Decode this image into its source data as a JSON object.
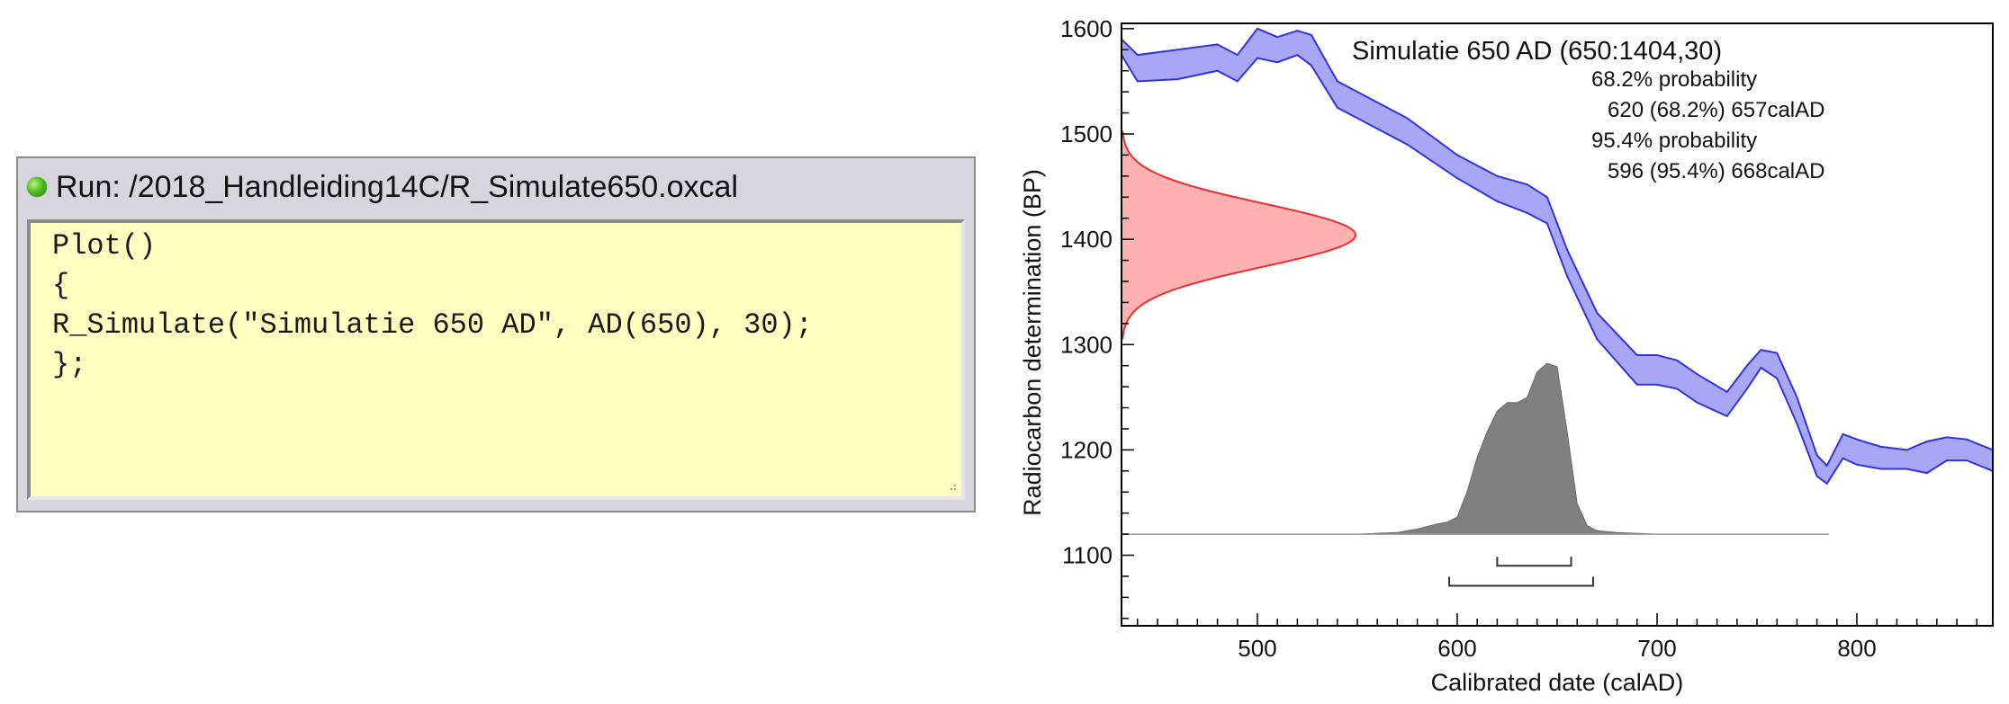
{
  "run_window": {
    "title": "Run: /2018_Handleiding14C/R_Simulate650.oxcal",
    "code_lines": [
      "Plot()",
      "{",
      "R_Simulate(\"Simulatie 650 AD\", AD(650), 30);",
      "};"
    ],
    "status_color": "#4fbf1f"
  },
  "chart_data": {
    "type": "area",
    "xlabel": "Calibrated date (calAD)",
    "ylabel": "Radiocarbon determination (BP)",
    "xlim": [
      432,
      868
    ],
    "ylim": [
      1033,
      1605
    ],
    "x_ticks": [
      500,
      600,
      700,
      800
    ],
    "y_ticks": [
      1100,
      1200,
      1300,
      1400,
      1500,
      1600
    ],
    "annotation": {
      "title": "Simulatie 650 AD (650:1404,30)",
      "lines": [
        {
          "text": "68.2% probability",
          "indent": false
        },
        {
          "text": "620 (68.2%) 657calAD",
          "indent": true
        },
        {
          "text": "95.4% probability",
          "indent": false
        },
        {
          "text": "596 (95.4%) 668calAD",
          "indent": true
        }
      ]
    },
    "calibration_curve": {
      "color": "#3333dd",
      "fill": "#a7a7f5",
      "x": [
        432,
        440,
        460,
        480,
        490,
        500,
        510,
        520,
        527,
        540,
        555,
        575,
        600,
        620,
        635,
        645,
        655,
        670,
        690,
        700,
        710,
        720,
        735,
        745,
        752,
        760,
        770,
        780,
        785,
        793,
        800,
        812,
        825,
        835,
        845,
        855,
        868
      ],
      "upper": [
        1590,
        1575,
        1580,
        1585,
        1575,
        1600,
        1592,
        1598,
        1594,
        1550,
        1535,
        1515,
        1480,
        1460,
        1452,
        1440,
        1390,
        1330,
        1290,
        1290,
        1285,
        1272,
        1255,
        1280,
        1295,
        1292,
        1250,
        1195,
        1185,
        1215,
        1210,
        1203,
        1200,
        1208,
        1212,
        1210,
        1200
      ],
      "lower": [
        1575,
        1550,
        1552,
        1560,
        1550,
        1572,
        1568,
        1575,
        1565,
        1525,
        1510,
        1490,
        1458,
        1436,
        1425,
        1415,
        1365,
        1305,
        1262,
        1262,
        1258,
        1245,
        1232,
        1258,
        1278,
        1268,
        1225,
        1175,
        1168,
        1192,
        1186,
        1182,
        1182,
        1178,
        1190,
        1190,
        1180
      ]
    },
    "measurement": {
      "color": "#e83030",
      "fill": "#ffb0b0",
      "mean": 1404,
      "sd": 30
    },
    "posterior": {
      "color": "#808080",
      "fill": "#808080",
      "baseline": 1120,
      "height": 190,
      "x": [
        432,
        550,
        570,
        580,
        590,
        595,
        600,
        605,
        610,
        615,
        620,
        625,
        630,
        635,
        640,
        645,
        650,
        655,
        660,
        665,
        670,
        680,
        700,
        786
      ],
      "density": [
        0,
        0,
        0.01,
        0.03,
        0.06,
        0.07,
        0.1,
        0.25,
        0.45,
        0.6,
        0.72,
        0.77,
        0.77,
        0.8,
        0.95,
        1.0,
        0.98,
        0.6,
        0.18,
        0.05,
        0.02,
        0.01,
        0,
        0
      ]
    },
    "ranges": [
      {
        "level": "68.2%",
        "from": 620,
        "to": 657,
        "y": 1090
      },
      {
        "level": "95.4%",
        "from": 596,
        "to": 668,
        "y": 1071
      }
    ]
  }
}
